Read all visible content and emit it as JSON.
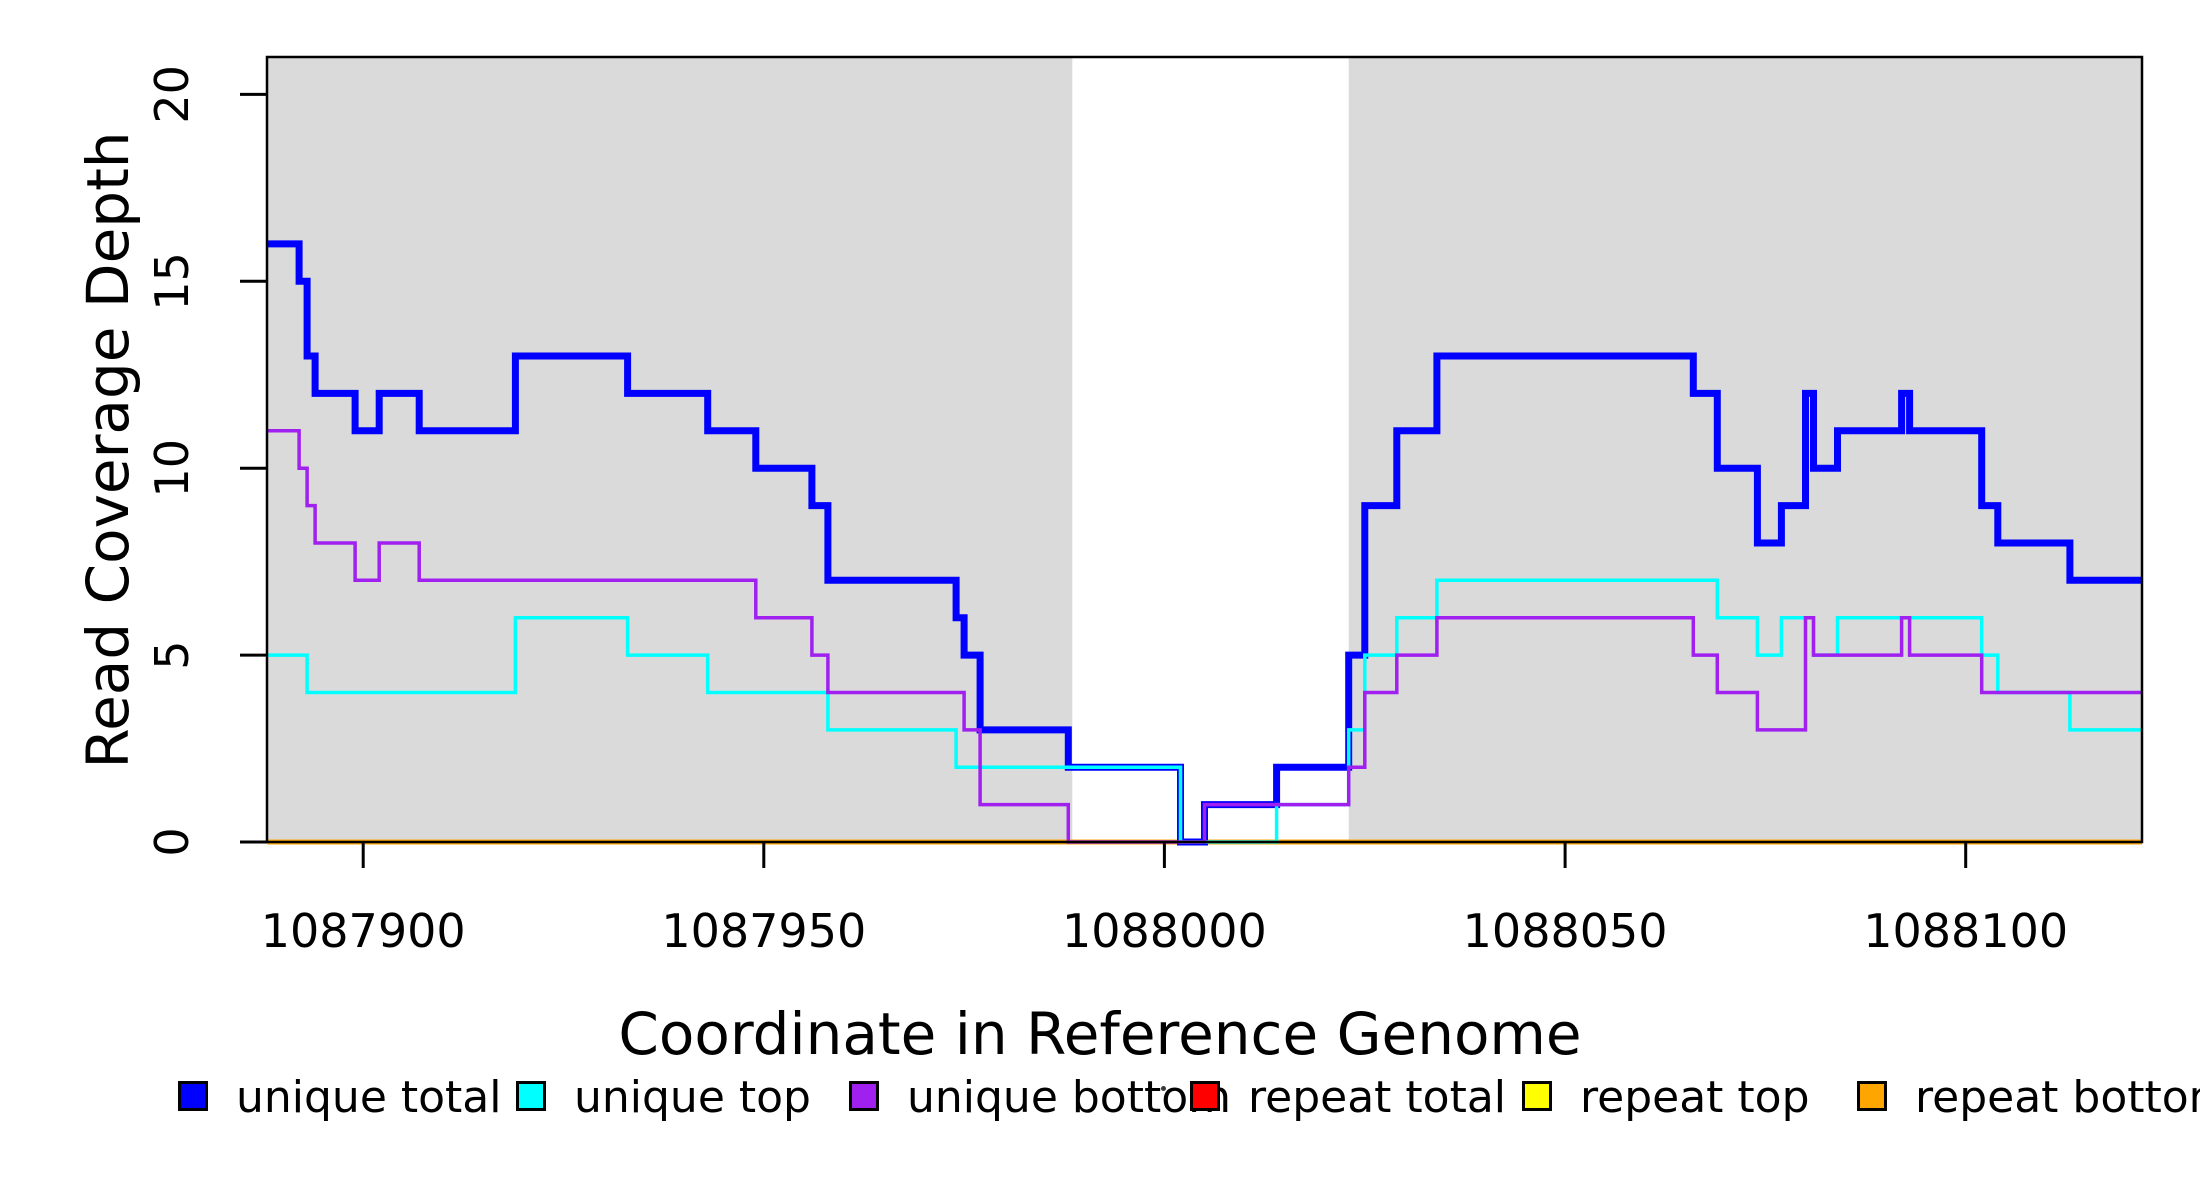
{
  "figure": {
    "background": "#FFFFFF"
  },
  "x_axis": {
    "title": "Coordinate in Reference Genome",
    "ticks": [
      1087900,
      1087950,
      1088000,
      1088050,
      1088100
    ],
    "range": [
      1087888,
      1088122
    ]
  },
  "y_axis": {
    "title": "Read Coverage Depth",
    "ticks": [
      0,
      5,
      10,
      15,
      20
    ],
    "range": [
      0,
      21
    ]
  },
  "legend": {
    "items": [
      {
        "label": "unique total",
        "color": "#0000FF"
      },
      {
        "label": "unique top",
        "color": "#00FFFF"
      },
      {
        "label": "unique bottom",
        "color": "#A020F0"
      },
      {
        "label": "repeat total",
        "color": "#FF0000"
      },
      {
        "label": "repeat top",
        "color": "#FFFF00"
      },
      {
        "label": "repeat bottom",
        "color": "#FFA500"
      }
    ]
  },
  "chart_data": {
    "type": "line",
    "subtype": "step",
    "xlabel": "Coordinate in Reference Genome",
    "ylabel": "Read Coverage Depth",
    "xlim": [
      1087888,
      1088122
    ],
    "ylim": [
      0,
      21
    ],
    "x_end": 1088122,
    "grid": false,
    "legend_position": "bottom",
    "shade_color": "#DADADA",
    "shaded_regions": [
      [
        1087888,
        1087988.5
      ],
      [
        1088023,
        1088122
      ]
    ],
    "series": [
      {
        "name": "repeat total",
        "color": "#FF0000",
        "width": 4,
        "steps": [
          [
            1087888,
            0
          ]
        ]
      },
      {
        "name": "repeat top",
        "color": "#FFFF00",
        "width": 4,
        "steps": [
          [
            1087888,
            0
          ]
        ]
      },
      {
        "name": "repeat bottom",
        "color": "#FFA500",
        "width": 5,
        "steps": [
          [
            1087888,
            0
          ]
        ]
      },
      {
        "name": "unique total",
        "color": "#0000FF",
        "width": 7,
        "steps": [
          [
            1087888,
            16
          ],
          [
            1087892,
            15
          ],
          [
            1087893,
            13
          ],
          [
            1087894,
            12
          ],
          [
            1087899,
            11
          ],
          [
            1087902,
            12
          ],
          [
            1087907,
            11
          ],
          [
            1087919,
            13
          ],
          [
            1087933,
            12
          ],
          [
            1087943,
            11
          ],
          [
            1087949,
            10
          ],
          [
            1087956,
            9
          ],
          [
            1087958,
            7
          ],
          [
            1087974,
            6
          ],
          [
            1087975,
            5
          ],
          [
            1087977,
            3
          ],
          [
            1087988,
            2
          ],
          [
            1088002,
            0
          ],
          [
            1088005,
            1
          ],
          [
            1088014,
            2
          ],
          [
            1088023,
            5
          ],
          [
            1088025,
            9
          ],
          [
            1088029,
            11
          ],
          [
            1088034,
            13
          ],
          [
            1088066,
            12
          ],
          [
            1088069,
            10
          ],
          [
            1088074,
            8
          ],
          [
            1088077,
            9
          ],
          [
            1088080,
            12
          ],
          [
            1088081,
            10
          ],
          [
            1088084,
            11
          ],
          [
            1088092,
            12
          ],
          [
            1088093,
            11
          ],
          [
            1088102,
            9
          ],
          [
            1088104,
            8
          ],
          [
            1088113,
            7
          ]
        ]
      },
      {
        "name": "unique top",
        "color": "#00FFFF",
        "width": 3.5,
        "steps": [
          [
            1087888,
            5
          ],
          [
            1087893,
            4
          ],
          [
            1087919,
            6
          ],
          [
            1087933,
            5
          ],
          [
            1087943,
            4
          ],
          [
            1087958,
            3
          ],
          [
            1087974,
            2
          ],
          [
            1088002,
            0
          ],
          [
            1088014,
            1
          ],
          [
            1088023,
            3
          ],
          [
            1088025,
            5
          ],
          [
            1088029,
            6
          ],
          [
            1088034,
            7
          ],
          [
            1088069,
            6
          ],
          [
            1088074,
            5
          ],
          [
            1088077,
            6
          ],
          [
            1088081,
            5
          ],
          [
            1088084,
            6
          ],
          [
            1088102,
            5
          ],
          [
            1088104,
            4
          ],
          [
            1088113,
            3
          ]
        ]
      },
      {
        "name": "unique bottom",
        "color": "#A020F0",
        "width": 3.5,
        "steps": [
          [
            1087888,
            11
          ],
          [
            1087892,
            10
          ],
          [
            1087893,
            9
          ],
          [
            1087894,
            8
          ],
          [
            1087899,
            7
          ],
          [
            1087902,
            8
          ],
          [
            1087907,
            7
          ],
          [
            1087949,
            6
          ],
          [
            1087956,
            5
          ],
          [
            1087958,
            4
          ],
          [
            1087975,
            3
          ],
          [
            1087977,
            1
          ],
          [
            1087988,
            0
          ],
          [
            1088005,
            1
          ],
          [
            1088023,
            2
          ],
          [
            1088025,
            4
          ],
          [
            1088029,
            5
          ],
          [
            1088034,
            6
          ],
          [
            1088066,
            5
          ],
          [
            1088069,
            4
          ],
          [
            1088074,
            3
          ],
          [
            1088080,
            6
          ],
          [
            1088081,
            5
          ],
          [
            1088092,
            6
          ],
          [
            1088093,
            5
          ],
          [
            1088102,
            4
          ]
        ]
      }
    ]
  }
}
